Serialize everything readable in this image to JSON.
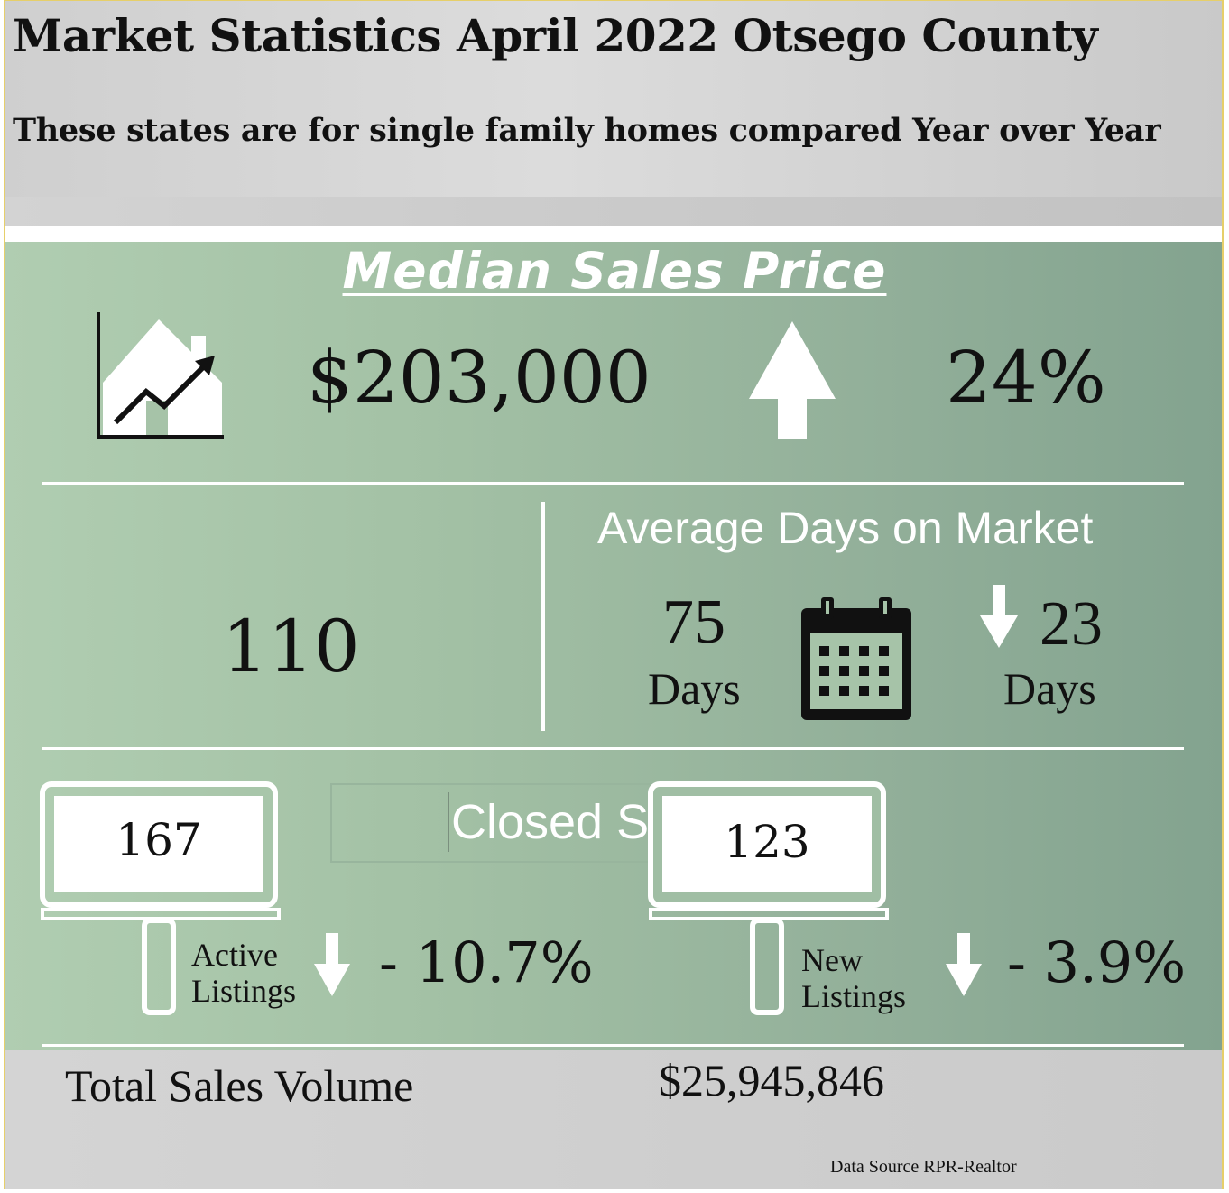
{
  "header": {
    "title": "Market Statistics April 2022 Otsego County",
    "subtitle": "These states are for single family homes compared Year over Year"
  },
  "median": {
    "section_title": "Median Sales Price",
    "price": "$203,000",
    "change": "24%",
    "icon": "house-growth-chart-icon",
    "trend_icon": "arrow-up-icon"
  },
  "closed": {
    "value": "110",
    "label": "Closed Sal"
  },
  "days_on_market": {
    "title": "Average Days on Market",
    "value": "75",
    "unit": "Days",
    "change_value": "23",
    "change_unit": "Days",
    "icon": "calendar-icon",
    "trend_icon": "arrow-down-icon"
  },
  "active_listings": {
    "value": "167",
    "label_line1": "Active",
    "label_line2": "Listings",
    "change": "- 10.7%",
    "trend_icon": "arrow-down-icon"
  },
  "new_listings": {
    "value": "123",
    "label_line1": "New",
    "label_line2": "Listings",
    "change": "- 3.9%",
    "trend_icon": "arrow-down-icon"
  },
  "footer": {
    "volume_label": "Total Sales Volume",
    "volume_value": "$25,945,846",
    "source": "Data Source RPR-Realtor"
  },
  "colors": {
    "accent_green": "#a3c1a5",
    "border_gold": "#e6cf6a",
    "header_gray": "#d3d3d3"
  }
}
